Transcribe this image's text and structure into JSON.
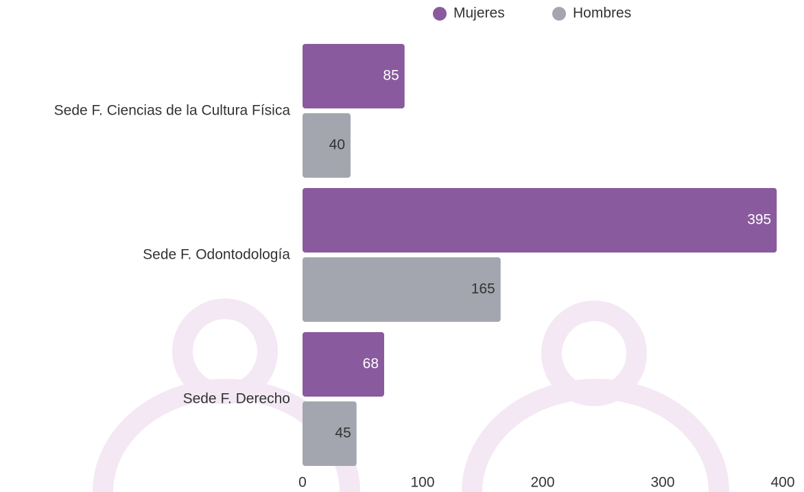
{
  "chart_data": {
    "type": "bar",
    "categories": [
      "Sede F. Ciencias de la Cultura Física",
      "Sede F. Odontodología",
      "Sede F. Derecho"
    ],
    "series": [
      {
        "name": "Mujeres",
        "color": "#8a5a9e",
        "values": [
          85,
          395,
          68
        ]
      },
      {
        "name": "Hombres",
        "color": "#a3a6af",
        "values": [
          40,
          165,
          45
        ]
      }
    ],
    "xlim": [
      0,
      400
    ],
    "xticks": [
      0,
      100,
      200,
      300,
      400
    ],
    "legend": "top"
  }
}
